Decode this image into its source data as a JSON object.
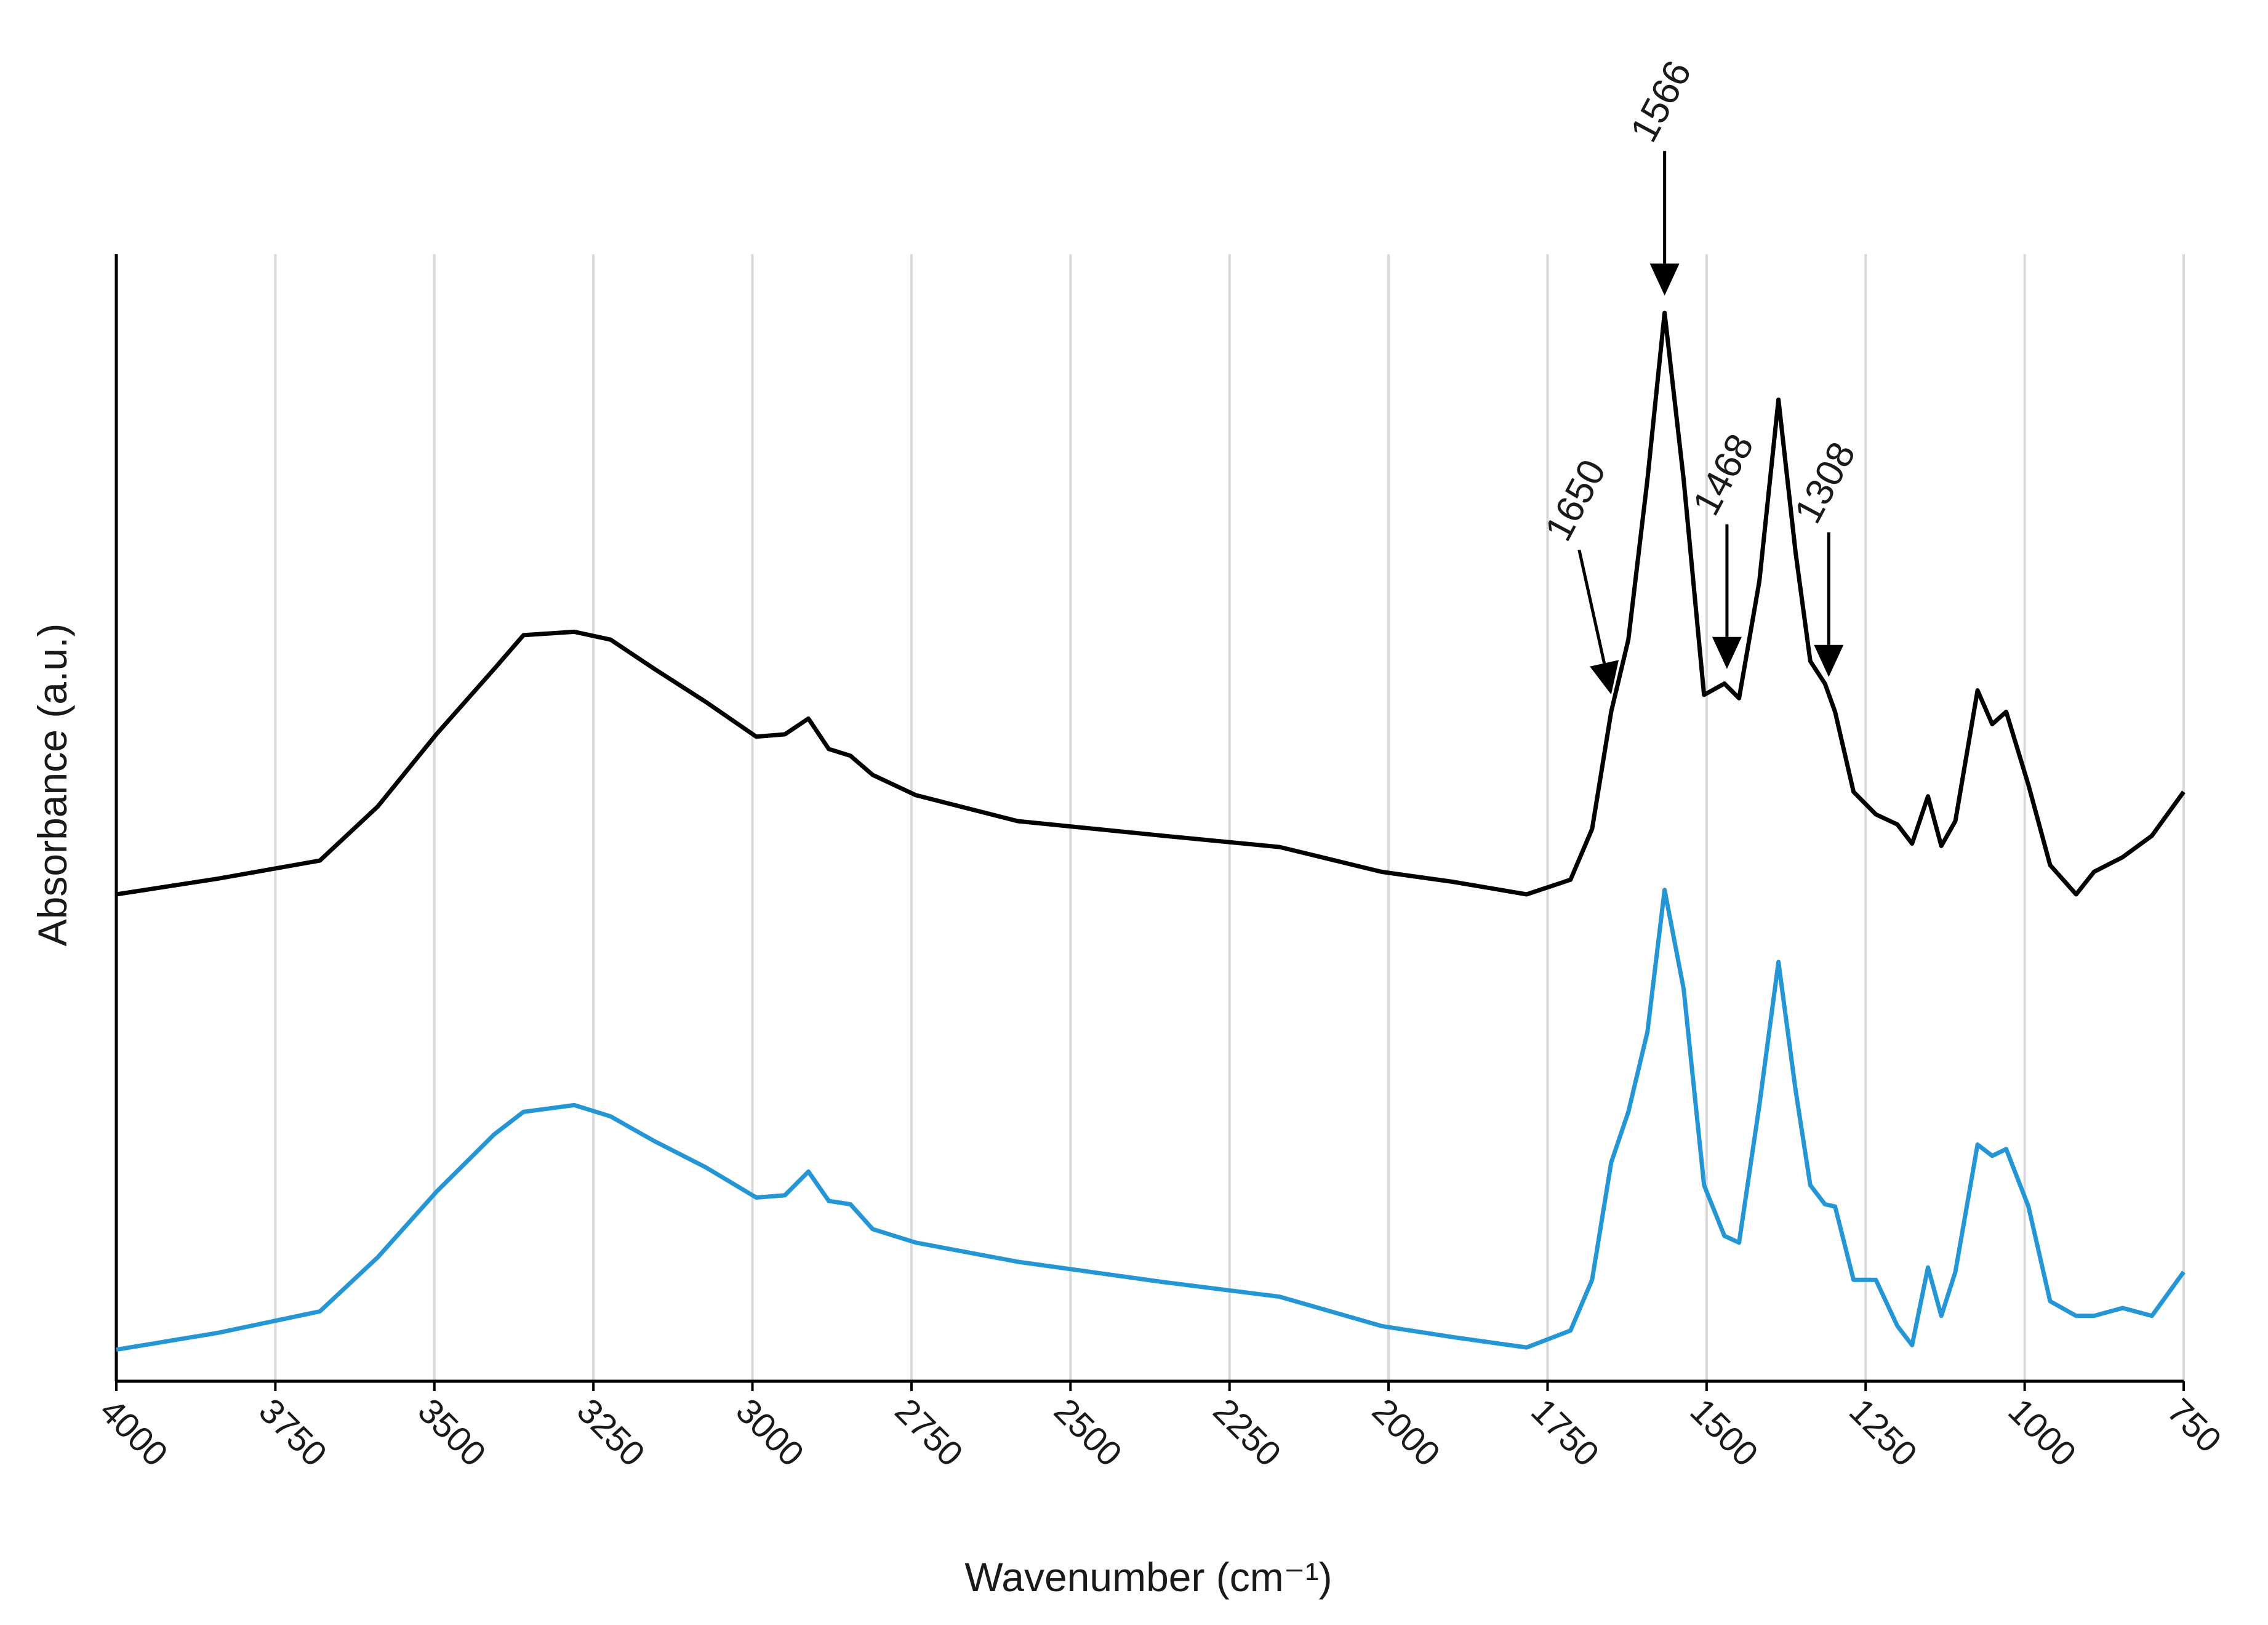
{
  "chart_data": {
    "type": "line",
    "x_label": "Wavenumber  (cm⁻¹)",
    "y_label": "Absorbance (a.u.)",
    "x": [
      4000,
      3840,
      3680,
      3589,
      3497,
      3406,
      3360,
      3280,
      3223,
      3154,
      3074,
      2994,
      2949,
      2912,
      2880,
      2846,
      2811,
      2743,
      2583,
      2354,
      2171,
      2011,
      1897,
      1783,
      1714,
      1680,
      1650,
      1623,
      1593,
      1566,
      1536,
      1504,
      1472,
      1449,
      1417,
      1387,
      1360,
      1337,
      1314,
      1298,
      1269,
      1234,
      1200,
      1177,
      1152,
      1131,
      1109,
      1074,
      1051,
      1029,
      994,
      960,
      919,
      891,
      846,
      800,
      750
    ],
    "series": [
      {
        "color": "#000000",
        "values": [
          0.432,
          0.446,
          0.462,
          0.51,
          0.574,
          0.632,
          0.662,
          0.665,
          0.658,
          0.632,
          0.603,
          0.572,
          0.574,
          0.588,
          0.561,
          0.555,
          0.538,
          0.52,
          0.497,
          0.484,
          0.474,
          0.452,
          0.443,
          0.432,
          0.445,
          0.49,
          0.594,
          0.658,
          0.8,
          0.948,
          0.8,
          0.609,
          0.619,
          0.606,
          0.71,
          0.871,
          0.735,
          0.639,
          0.619,
          0.594,
          0.523,
          0.503,
          0.494,
          0.477,
          0.519,
          0.475,
          0.497,
          0.613,
          0.583,
          0.594,
          0.529,
          0.458,
          0.432,
          0.452,
          0.465,
          0.484,
          0.523
        ]
      },
      {
        "color": "#2496d6",
        "values": [
          0.028,
          0.043,
          0.062,
          0.11,
          0.168,
          0.219,
          0.239,
          0.245,
          0.235,
          0.213,
          0.19,
          0.163,
          0.165,
          0.186,
          0.16,
          0.157,
          0.135,
          0.123,
          0.106,
          0.088,
          0.075,
          0.049,
          0.039,
          0.03,
          0.045,
          0.09,
          0.194,
          0.239,
          0.31,
          0.436,
          0.348,
          0.174,
          0.129,
          0.123,
          0.245,
          0.372,
          0.258,
          0.174,
          0.157,
          0.155,
          0.09,
          0.09,
          0.049,
          0.032,
          0.101,
          0.058,
          0.097,
          0.21,
          0.2,
          0.206,
          0.155,
          0.071,
          0.058,
          0.058,
          0.065,
          0.058,
          0.097
        ]
      }
    ],
    "xlim": [
      4000,
      750
    ],
    "xticks": [
      4000,
      3750,
      3500,
      3250,
      3000,
      2750,
      2500,
      2250,
      2000,
      1750,
      1500,
      1250,
      1000,
      750
    ],
    "ylim": [
      0,
      1
    ],
    "grid": true,
    "annotations": [
      1566,
      1650,
      1468,
      1308
    ]
  }
}
